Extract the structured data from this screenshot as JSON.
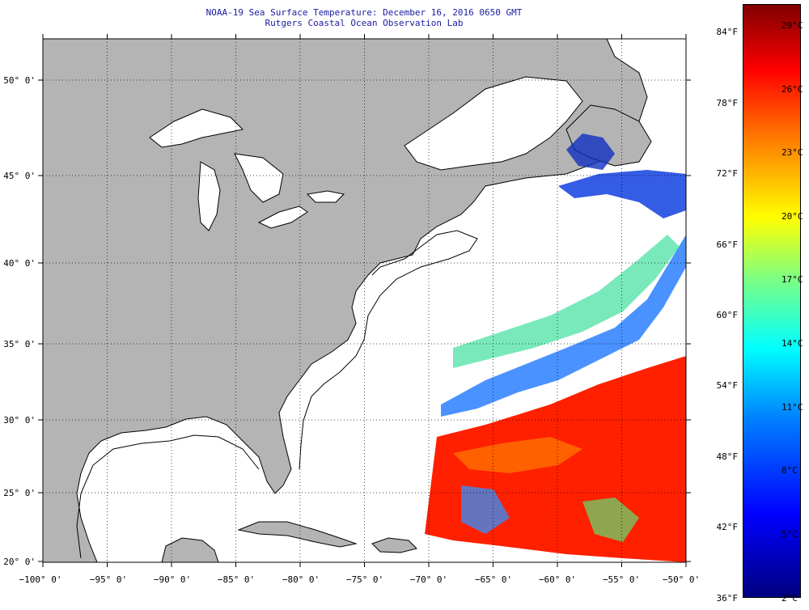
{
  "title": {
    "line1": "NOAA-19 Sea Surface Temperature:  December 16, 2016 0650 GMT",
    "line2": "Rutgers Coastal Ocean Observation Lab"
  },
  "map": {
    "lon_range": [
      -100,
      -50
    ],
    "lat_range": [
      20,
      52.5
    ],
    "lat_labels": [
      {
        "text": "50° 0'",
        "value": 50
      },
      {
        "text": "45° 0'",
        "value": 45
      },
      {
        "text": "40° 0'",
        "value": 40
      },
      {
        "text": "35° 0'",
        "value": 35
      },
      {
        "text": "30° 0'",
        "value": 30
      },
      {
        "text": "25° 0'",
        "value": 25
      },
      {
        "text": "20° 0'",
        "value": 20
      }
    ],
    "lon_labels": [
      {
        "text": "−100° 0'",
        "value": -100
      },
      {
        "text": "−95° 0'",
        "value": -95
      },
      {
        "text": "−90° 0'",
        "value": -90
      },
      {
        "text": "−85° 0'",
        "value": -85
      },
      {
        "text": "−80° 0'",
        "value": -80
      },
      {
        "text": "−75° 0'",
        "value": -75
      },
      {
        "text": "−70° 0'",
        "value": -70
      },
      {
        "text": "−65° 0'",
        "value": -65
      },
      {
        "text": "−60° 0'",
        "value": -60
      },
      {
        "text": "−55° 0'",
        "value": -55
      },
      {
        "text": "−50° 0'",
        "value": -50
      }
    ],
    "colors": {
      "land": "#b4b4b4",
      "ocean": "#ffffff",
      "coast": "#000000"
    }
  },
  "colorbar": {
    "f_labels": [
      {
        "text": "84°F",
        "value": 84
      },
      {
        "text": "78°F",
        "value": 78
      },
      {
        "text": "72°F",
        "value": 72
      },
      {
        "text": "66°F",
        "value": 66
      },
      {
        "text": "60°F",
        "value": 60
      },
      {
        "text": "54°F",
        "value": 54
      },
      {
        "text": "48°F",
        "value": 48
      },
      {
        "text": "42°F",
        "value": 42
      },
      {
        "text": "36°F",
        "value": 36
      }
    ],
    "c_labels": [
      {
        "text": "29°C",
        "value": 29
      },
      {
        "text": "26°C",
        "value": 26
      },
      {
        "text": "23°C",
        "value": 23
      },
      {
        "text": "20°C",
        "value": 20
      },
      {
        "text": "17°C",
        "value": 17
      },
      {
        "text": "14°C",
        "value": 14
      },
      {
        "text": "11°C",
        "value": 11
      },
      {
        "text": "8°C",
        "value": 8
      },
      {
        "text": "5°C",
        "value": 5
      },
      {
        "text": "2°C",
        "value": 2
      }
    ]
  }
}
